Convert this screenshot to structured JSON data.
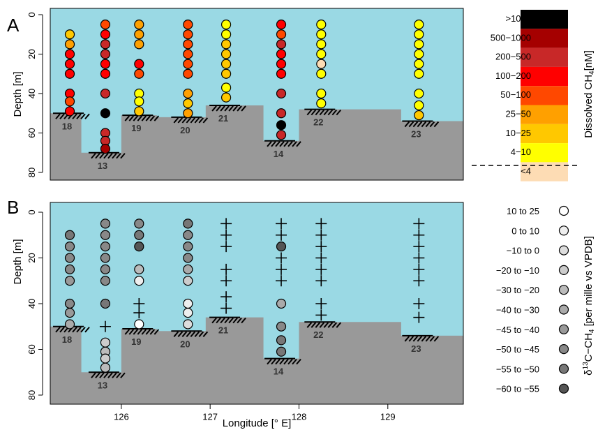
{
  "chart_data": [
    {
      "panel_label": "A",
      "type": "scatter",
      "ylabel": "Depth [m]",
      "yticks": [
        "0",
        "20",
        "40",
        "60",
        "80"
      ],
      "ylim": [
        0,
        85
      ],
      "xlim": [
        125.2,
        129.85
      ],
      "bathymetry": [
        {
          "station": "18",
          "x_from": 125.2,
          "x_to": 125.55,
          "depth": 50
        },
        {
          "station": "13",
          "x_from": 125.55,
          "x_to": 126.0,
          "depth": 70
        },
        {
          "station": "19",
          "x_from": 126.0,
          "x_to": 126.4,
          "depth": 51
        },
        {
          "station": "20",
          "x_from": 126.4,
          "x_to": 126.95,
          "depth": 52
        },
        {
          "station": "21",
          "x_from": 126.95,
          "x_to": 127.45,
          "depth": 46
        },
        {
          "station": "14",
          "x_from": 127.6,
          "x_to": 128.0,
          "depth": 64
        },
        {
          "station": "22",
          "x_from": 128.0,
          "x_to": 128.6,
          "depth": 48
        },
        {
          "station": "23",
          "x_from": 129.15,
          "x_to": 129.85,
          "depth": 54
        }
      ],
      "stations": [
        {
          "station": "18",
          "lon": 125.42,
          "samples": [
            [
              10,
              "10-25"
            ],
            [
              15,
              "25-50"
            ],
            [
              20,
              "100-200"
            ],
            [
              25,
              "100-200"
            ],
            [
              30,
              "100-200"
            ],
            [
              40,
              "100-200"
            ],
            [
              44,
              "50-100"
            ],
            [
              49,
              "100-200"
            ]
          ]
        },
        {
          "station": "13",
          "lon": 125.82,
          "samples": [
            [
              5,
              "50-100"
            ],
            [
              10,
              "100-200"
            ],
            [
              15,
              "200-500"
            ],
            [
              20,
              "200-500"
            ],
            [
              25,
              "100-200"
            ],
            [
              30,
              "100-200"
            ],
            [
              40,
              "200-500"
            ],
            [
              50,
              ">1000"
            ],
            [
              60,
              "200-500"
            ],
            [
              64,
              "200-500"
            ],
            [
              68,
              "500-1000"
            ]
          ]
        },
        {
          "station": "19",
          "lon": 126.2,
          "samples": [
            [
              5,
              "25-50"
            ],
            [
              10,
              "25-50"
            ],
            [
              15,
              "25-50"
            ],
            [
              25,
              "100-200"
            ],
            [
              30,
              "50-100"
            ],
            [
              40,
              "4-10"
            ],
            [
              44,
              "4-10"
            ],
            [
              49,
              "10-25"
            ]
          ]
        },
        {
          "station": "20",
          "lon": 126.75,
          "samples": [
            [
              5,
              "50-100"
            ],
            [
              10,
              "50-100"
            ],
            [
              15,
              "50-100"
            ],
            [
              20,
              "50-100"
            ],
            [
              25,
              "50-100"
            ],
            [
              30,
              "50-100"
            ],
            [
              40,
              "25-50"
            ],
            [
              45,
              "10-25"
            ],
            [
              50,
              "25-50"
            ]
          ]
        },
        {
          "station": "21",
          "lon": 127.18,
          "samples": [
            [
              5,
              "4-10"
            ],
            [
              10,
              "4-10"
            ],
            [
              15,
              "10-25"
            ],
            [
              20,
              "10-25"
            ],
            [
              25,
              "10-25"
            ],
            [
              30,
              "10-25"
            ],
            [
              37,
              "4-10"
            ],
            [
              42,
              "10-25"
            ]
          ]
        },
        {
          "station": "14",
          "lon": 127.8,
          "samples": [
            [
              5,
              "100-200"
            ],
            [
              10,
              "50-100"
            ],
            [
              15,
              "200-500"
            ],
            [
              20,
              "100-200"
            ],
            [
              25,
              "100-200"
            ],
            [
              30,
              "100-200"
            ],
            [
              40,
              "200-500"
            ],
            [
              50,
              "200-500"
            ],
            [
              56,
              ">1000"
            ],
            [
              61,
              "200-500"
            ]
          ]
        },
        {
          "station": "22",
          "lon": 128.25,
          "samples": [
            [
              5,
              "4-10"
            ],
            [
              10,
              "4-10"
            ],
            [
              15,
              "4-10"
            ],
            [
              20,
              "4-10"
            ],
            [
              25,
              "<4"
            ],
            [
              30,
              "4-10"
            ],
            [
              40,
              "4-10"
            ],
            [
              45,
              "4-10"
            ]
          ]
        },
        {
          "station": "23",
          "lon": 129.35,
          "samples": [
            [
              5,
              "4-10"
            ],
            [
              10,
              "4-10"
            ],
            [
              15,
              "4-10"
            ],
            [
              20,
              "4-10"
            ],
            [
              25,
              "4-10"
            ],
            [
              30,
              "4-10"
            ],
            [
              40,
              "4-10"
            ],
            [
              46,
              "4-10"
            ],
            [
              51,
              "10-25"
            ]
          ]
        }
      ],
      "legend": {
        "title": "Dissolved CH4[nM]",
        "classes": [
          {
            "label": ">1000",
            "color": "#000000"
          },
          {
            "label": "500−1000",
            "color": "#a50000"
          },
          {
            "label": "200−500",
            "color": "#c82828"
          },
          {
            "label": "100−200",
            "color": "#ff0000"
          },
          {
            "label": "50−100",
            "color": "#ff4800"
          },
          {
            "label": "25−50",
            "color": "#ffa000"
          },
          {
            "label": "10−25",
            "color": "#ffc800"
          },
          {
            "label": "4−10",
            "color": "#ffff00"
          },
          {
            "label": "<4",
            "color": "#fddcb4"
          }
        ]
      }
    },
    {
      "panel_label": "B",
      "type": "scatter",
      "xlabel": "Longitude [° E]",
      "ylabel": "Depth [m]",
      "xticks": [
        "126",
        "127",
        "128",
        "129"
      ],
      "yticks": [
        "0",
        "20",
        "40",
        "60",
        "80"
      ],
      "ylim": [
        0,
        85
      ],
      "xlim": [
        125.2,
        129.85
      ],
      "stations": [
        {
          "station": "18",
          "lon": 125.42,
          "samples": [
            [
              10,
              "-55 to -50"
            ],
            [
              15,
              "-50 to -45"
            ],
            [
              20,
              "-50 to -45"
            ],
            [
              25,
              "-50 to -45"
            ],
            [
              30,
              "-45 to -40"
            ],
            [
              40,
              "-50 to -45"
            ],
            [
              44,
              "-45 to -40"
            ],
            [
              49,
              "-40 to -30"
            ]
          ]
        },
        {
          "station": "13",
          "lon": 125.82,
          "samples": [
            [
              5,
              "-50 to -45"
            ],
            [
              10,
              "-50 to -45"
            ],
            [
              15,
              "-50 to -45"
            ],
            [
              20,
              "-50 to -45"
            ],
            [
              25,
              "-50 to -45"
            ],
            [
              30,
              "-50 to -45"
            ],
            [
              40,
              "-55 to -50"
            ],
            [
              50,
              "+"
            ],
            [
              57,
              "-20 to -10"
            ],
            [
              61,
              "-30 to -20"
            ],
            [
              64,
              "-20 to -10"
            ],
            [
              68,
              "-30 to -20"
            ]
          ]
        },
        {
          "station": "19",
          "lon": 126.2,
          "samples": [
            [
              5,
              "-50 to -45"
            ],
            [
              10,
              "-55 to -50"
            ],
            [
              15,
              "-60 to -55"
            ],
            [
              25,
              "-30 to -20"
            ],
            [
              30,
              "0 to 10"
            ],
            [
              40,
              "+"
            ],
            [
              44,
              "+"
            ],
            [
              49,
              "10 to 25"
            ]
          ]
        },
        {
          "station": "20",
          "lon": 126.75,
          "samples": [
            [
              5,
              "-55 to -50"
            ],
            [
              10,
              "-50 to -45"
            ],
            [
              15,
              "-50 to -45"
            ],
            [
              20,
              "-50 to -45"
            ],
            [
              25,
              "-40 to -30"
            ],
            [
              30,
              "-20 to -10"
            ],
            [
              40,
              "0 to 10"
            ],
            [
              44,
              "0 to 10"
            ],
            [
              49,
              "-10 to 0"
            ]
          ]
        },
        {
          "station": "21",
          "lon": 127.18,
          "samples": [
            [
              5,
              "+"
            ],
            [
              10,
              "+"
            ],
            [
              15,
              "+"
            ],
            [
              25,
              "+"
            ],
            [
              30,
              "+"
            ],
            [
              37,
              "+"
            ],
            [
              42,
              "+"
            ]
          ]
        },
        {
          "station": "14",
          "lon": 127.8,
          "samples": [
            [
              5,
              "+"
            ],
            [
              10,
              "+"
            ],
            [
              15,
              "-60 to -55"
            ],
            [
              20,
              "+"
            ],
            [
              25,
              "+"
            ],
            [
              30,
              "+"
            ],
            [
              40,
              "-40 to -30"
            ],
            [
              50,
              "-50 to -45"
            ],
            [
              56,
              "-55 to -50"
            ],
            [
              61,
              "-55 to -50"
            ]
          ]
        },
        {
          "station": "22",
          "lon": 128.25,
          "samples": [
            [
              5,
              "+"
            ],
            [
              10,
              "+"
            ],
            [
              15,
              "+"
            ],
            [
              20,
              "+"
            ],
            [
              25,
              "+"
            ],
            [
              30,
              "+"
            ],
            [
              40,
              "+"
            ],
            [
              45,
              "+"
            ]
          ]
        },
        {
          "station": "23",
          "lon": 129.35,
          "samples": [
            [
              5,
              "+"
            ],
            [
              10,
              "+"
            ],
            [
              15,
              "+"
            ],
            [
              20,
              "+"
            ],
            [
              25,
              "+"
            ],
            [
              30,
              "+"
            ],
            [
              40,
              "+"
            ],
            [
              46,
              "+"
            ]
          ]
        }
      ],
      "legend": {
        "title": "δ13C−CH4 [per mille vs VPDB]",
        "classes": [
          {
            "label": "10  to  25",
            "color": "#ffffff"
          },
          {
            "label": "0 to  10",
            "color": "#eeeeee"
          },
          {
            "label": "−10 to   0",
            "color": "#dddddd"
          },
          {
            "label": "−20 to −10",
            "color": "#cccccc"
          },
          {
            "label": "−30 to −20",
            "color": "#bbbbbb"
          },
          {
            "label": "−40 to −30",
            "color": "#aaaaaa"
          },
          {
            "label": "−45 to −40",
            "color": "#999999"
          },
          {
            "label": "−50 to −45",
            "color": "#888888"
          },
          {
            "label": "−55 to −50",
            "color": "#777777"
          },
          {
            "label": "−60 to −55",
            "color": "#555555"
          }
        ]
      }
    }
  ],
  "colors": {
    "water": "#9ad9e4",
    "seafloor": "#999999"
  }
}
